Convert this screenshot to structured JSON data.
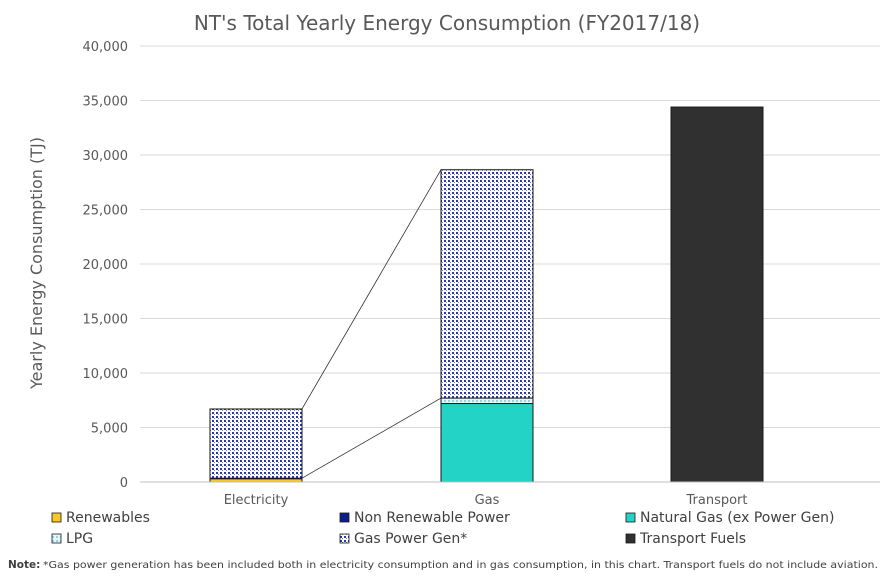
{
  "chart_data": {
    "type": "bar",
    "stacked": true,
    "title": "NT's Total Yearly Energy Consumption (FY2017/18)",
    "xlabel": "",
    "ylabel": "Yearly Energy Consumption (TJ)",
    "ylim": [
      0,
      40000
    ],
    "yticks": [
      0,
      5000,
      10000,
      15000,
      20000,
      25000,
      30000,
      35000,
      40000
    ],
    "ytick_labels": [
      "0",
      "5,000",
      "10,000",
      "15,000",
      "20,000",
      "25,000",
      "30,000",
      "35,000",
      "40,000"
    ],
    "grid": true,
    "legend_position": "bottom",
    "categories": [
      "Electricity",
      "Gas",
      "Transport"
    ],
    "series": [
      {
        "name": "Renewables",
        "values": [
          300,
          0,
          0
        ],
        "color": "#f5c92b",
        "pattern": "solid"
      },
      {
        "name": "Non Renewable Power",
        "values": [
          50,
          0,
          0
        ],
        "color": "#0b1f8a",
        "pattern": "solid"
      },
      {
        "name": "Natural Gas (ex Power Gen)",
        "values": [
          0,
          7200,
          0
        ],
        "color": "#22d3c6",
        "pattern": "solid"
      },
      {
        "name": "LPG",
        "values": [
          0,
          500,
          0
        ],
        "color": "#c9eef6",
        "pattern": "dots-light"
      },
      {
        "name": "Gas Power Gen*",
        "values": [
          6350,
          20950,
          0
        ],
        "color": "#d9ddf0",
        "pattern": "dots-blue"
      },
      {
        "name": "Transport Fuels",
        "values": [
          0,
          0,
          34400
        ],
        "color": "#303030",
        "pattern": "solid"
      }
    ],
    "connectors": [
      {
        "from_category": "Electricity",
        "from_value": 6700,
        "to_category": "Gas",
        "to_value": 28650
      },
      {
        "from_category": "Electricity",
        "from_value": 350,
        "to_category": "Gas",
        "to_value": 7700
      }
    ],
    "note_label": "Note:",
    "note_text": "*Gas power generation has been included both in electricity consumption and in gas consumption, in this chart. Transport fuels do not include aviation."
  }
}
